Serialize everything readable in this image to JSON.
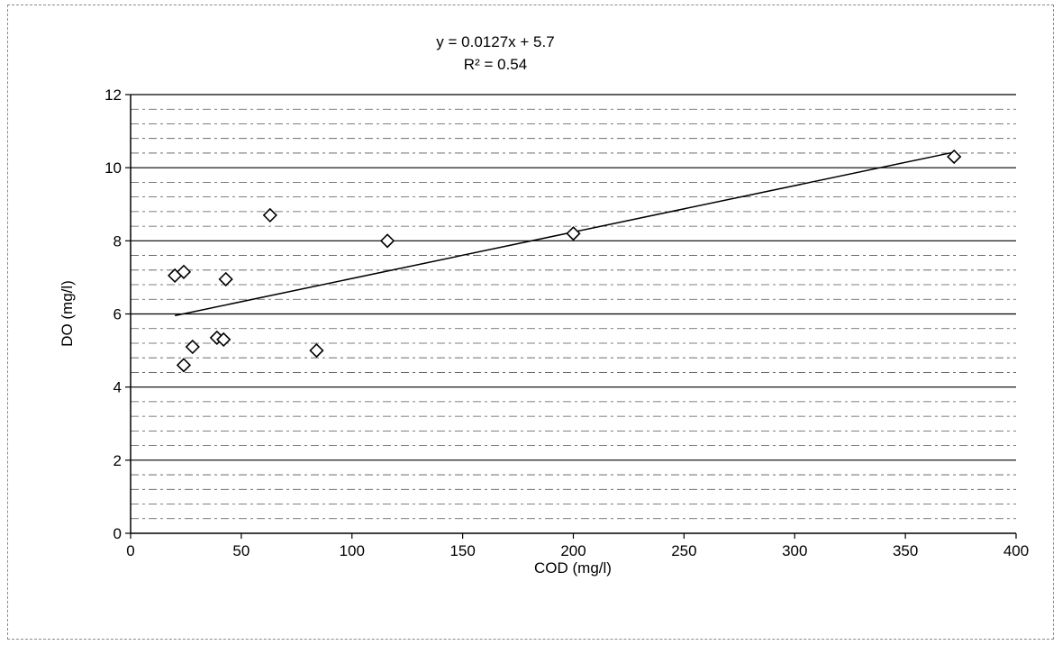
{
  "chart_data": {
    "type": "scatter",
    "title": "",
    "xlabel": "COD (mg/l)",
    "ylabel": "DO (mg/l)",
    "xlim": [
      0,
      400
    ],
    "ylim": [
      0,
      12
    ],
    "x_ticks": [
      "0",
      "50",
      "100",
      "150",
      "200",
      "250",
      "300",
      "350",
      "400"
    ],
    "y_ticks": [
      "0",
      "2",
      "4",
      "6",
      "8",
      "10",
      "12"
    ],
    "grid": true,
    "legend": "none",
    "marker": "diamond",
    "series": [
      {
        "points": [
          {
            "x": 20,
            "y": 7.05
          },
          {
            "x": 24,
            "y": 7.15
          },
          {
            "x": 24,
            "y": 4.6
          },
          {
            "x": 28,
            "y": 5.1
          },
          {
            "x": 39,
            "y": 5.35
          },
          {
            "x": 42,
            "y": 5.3
          },
          {
            "x": 43,
            "y": 6.95
          },
          {
            "x": 63,
            "y": 8.7
          },
          {
            "x": 84,
            "y": 5.0
          },
          {
            "x": 116,
            "y": 8.0
          },
          {
            "x": 200,
            "y": 8.2
          },
          {
            "x": 372,
            "y": 10.3
          }
        ]
      }
    ],
    "trendline": {
      "type": "linear",
      "slope": 0.0127,
      "intercept": 5.7,
      "x_range": [
        20,
        372
      ],
      "equation_label": "y = 0.0127x + 5.7",
      "r2_label": "R² = 0.54"
    }
  }
}
